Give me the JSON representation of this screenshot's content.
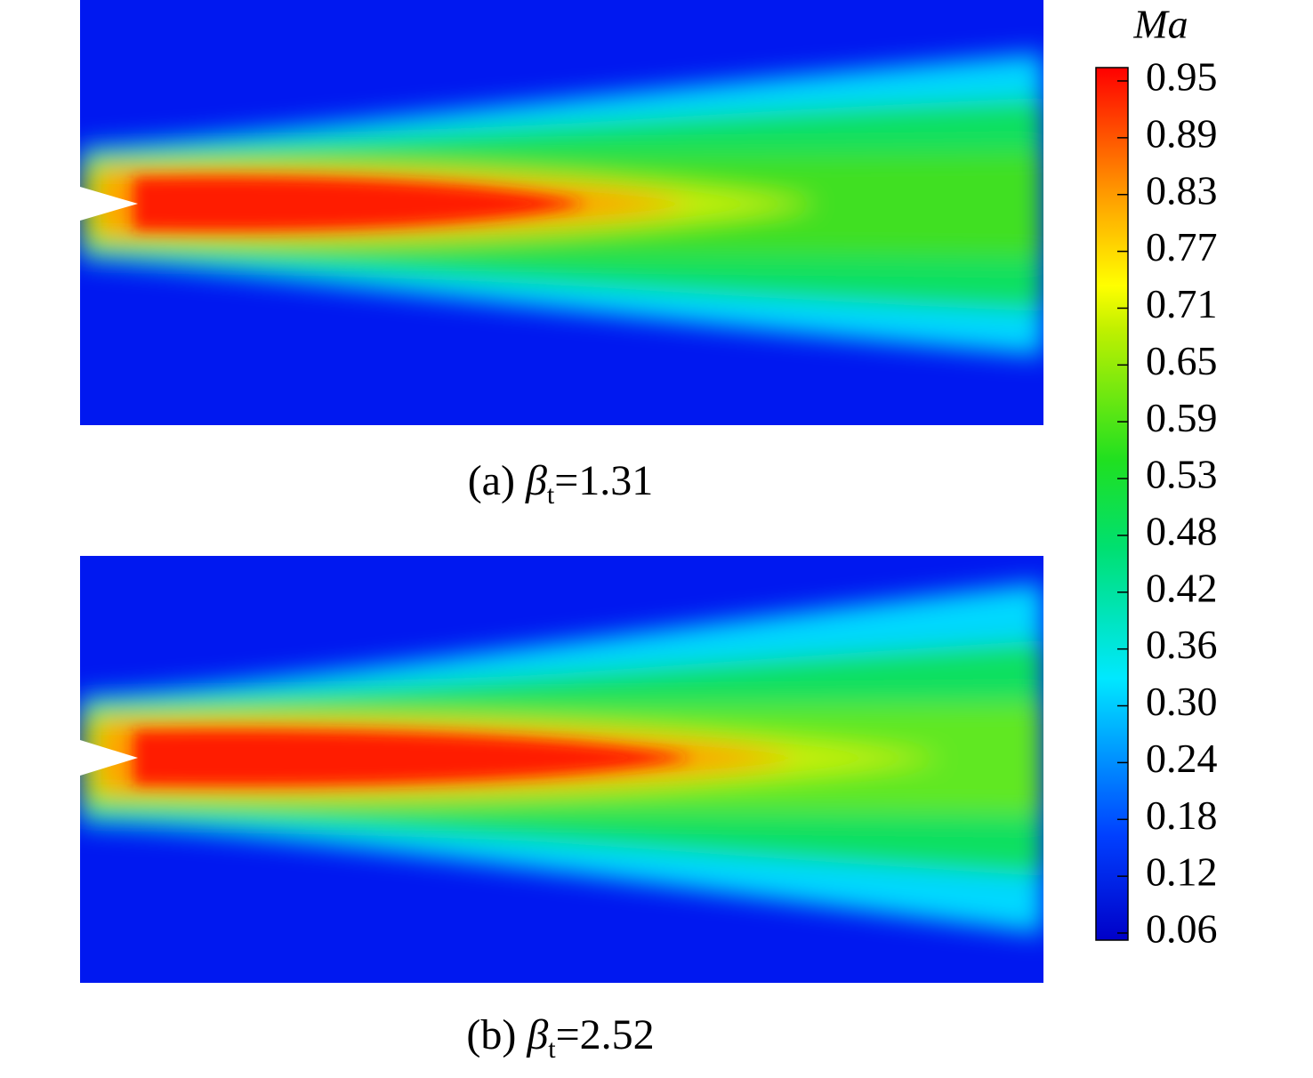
{
  "colorbar": {
    "title": "Ma",
    "ticks": [
      "0.95",
      "0.89",
      "0.83",
      "0.77",
      "0.71",
      "0.65",
      "0.59",
      "0.53",
      "0.48",
      "0.42",
      "0.36",
      "0.30",
      "0.24",
      "0.18",
      "0.12",
      "0.06"
    ]
  },
  "panels": [
    {
      "label": "(a)",
      "symbol": "β",
      "subscript": "t",
      "value": "=1.31"
    },
    {
      "label": "(b)",
      "symbol": "β",
      "subscript": "t",
      "value": "=2.52"
    }
  ]
}
